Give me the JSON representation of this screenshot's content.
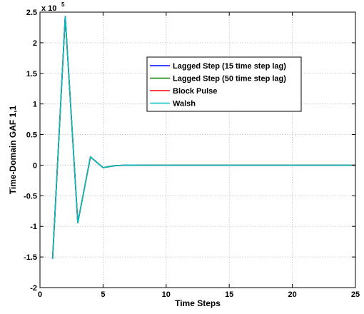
{
  "chart_data": {
    "type": "line",
    "xlabel": "Time Steps",
    "ylabel": "Time-Domain GAF 1,1",
    "xlim": [
      0,
      25
    ],
    "ylim": [
      -200000,
      250000
    ],
    "xticks": [
      0,
      5,
      10,
      15,
      20,
      25
    ],
    "xtick_labels": [
      "0",
      "5",
      "10",
      "15",
      "20",
      "25"
    ],
    "yticks": [
      -200000,
      -150000,
      -100000,
      -50000,
      0,
      50000,
      100000,
      150000,
      200000,
      250000
    ],
    "ytick_labels": [
      "-2",
      "-1.5",
      "-1",
      "-0.5",
      "0",
      "0.5",
      "1",
      "1.5",
      "2",
      "2.5"
    ],
    "y_multiplier": {
      "base": "x 10",
      "exponent": "5"
    },
    "grid": true,
    "grid_style": "dotted",
    "legend_position": "upper-right",
    "x": [
      1,
      2,
      3,
      4,
      5,
      6,
      7,
      8,
      9,
      10,
      11,
      12,
      13,
      14,
      15,
      16,
      17,
      18,
      19,
      20,
      21,
      22,
      23,
      24,
      25
    ],
    "series": [
      {
        "name": "Lagged Step (15 time step lag)",
        "color": "#0000ff",
        "values": [
          -153000,
          243000,
          -94000,
          13500,
          -4000,
          -800,
          200,
          0,
          0,
          0,
          0,
          0,
          0,
          0,
          0,
          0,
          0,
          0,
          0,
          0,
          0,
          0,
          0,
          0,
          0
        ]
      },
      {
        "name": "Lagged Step (50 time step lag)",
        "color": "#008000",
        "values": [
          -153000,
          243000,
          -94000,
          13500,
          -4000,
          -800,
          200,
          0,
          0,
          0,
          0,
          0,
          0,
          0,
          0,
          0,
          0,
          0,
          0,
          0,
          0,
          0,
          0,
          0,
          0
        ]
      },
      {
        "name": "Block Pulse",
        "color": "#ff0000",
        "values": [
          -153000,
          243000,
          -94000,
          13500,
          -4000,
          -800,
          200,
          0,
          0,
          0,
          0,
          0,
          0,
          0,
          0,
          0,
          0,
          0,
          0,
          0,
          0,
          0,
          0,
          0,
          0
        ]
      },
      {
        "name": "Walsh",
        "color": "#00bfbf",
        "values": [
          -153000,
          243000,
          -94000,
          13500,
          -4000,
          -800,
          200,
          0,
          0,
          0,
          0,
          0,
          0,
          0,
          0,
          0,
          0,
          0,
          0,
          0,
          0,
          0,
          0,
          0,
          0
        ]
      }
    ]
  }
}
